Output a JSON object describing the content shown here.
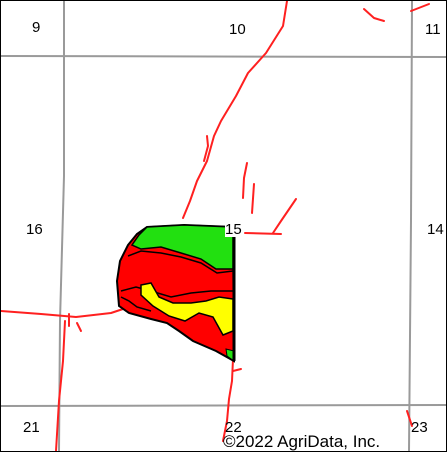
{
  "map": {
    "section_numbers": [
      "9",
      "10",
      "11",
      "16",
      "15",
      "14",
      "21",
      "22",
      "23"
    ],
    "copyright": "©2022 AgriData, Inc.",
    "colors": {
      "section_lines": "#9a9a9a",
      "roads": "#ff2020",
      "field_outline": "#000000",
      "soil_green": "#22e010",
      "soil_red": "#ff0000",
      "soil_yellow": "#ffff00"
    }
  }
}
